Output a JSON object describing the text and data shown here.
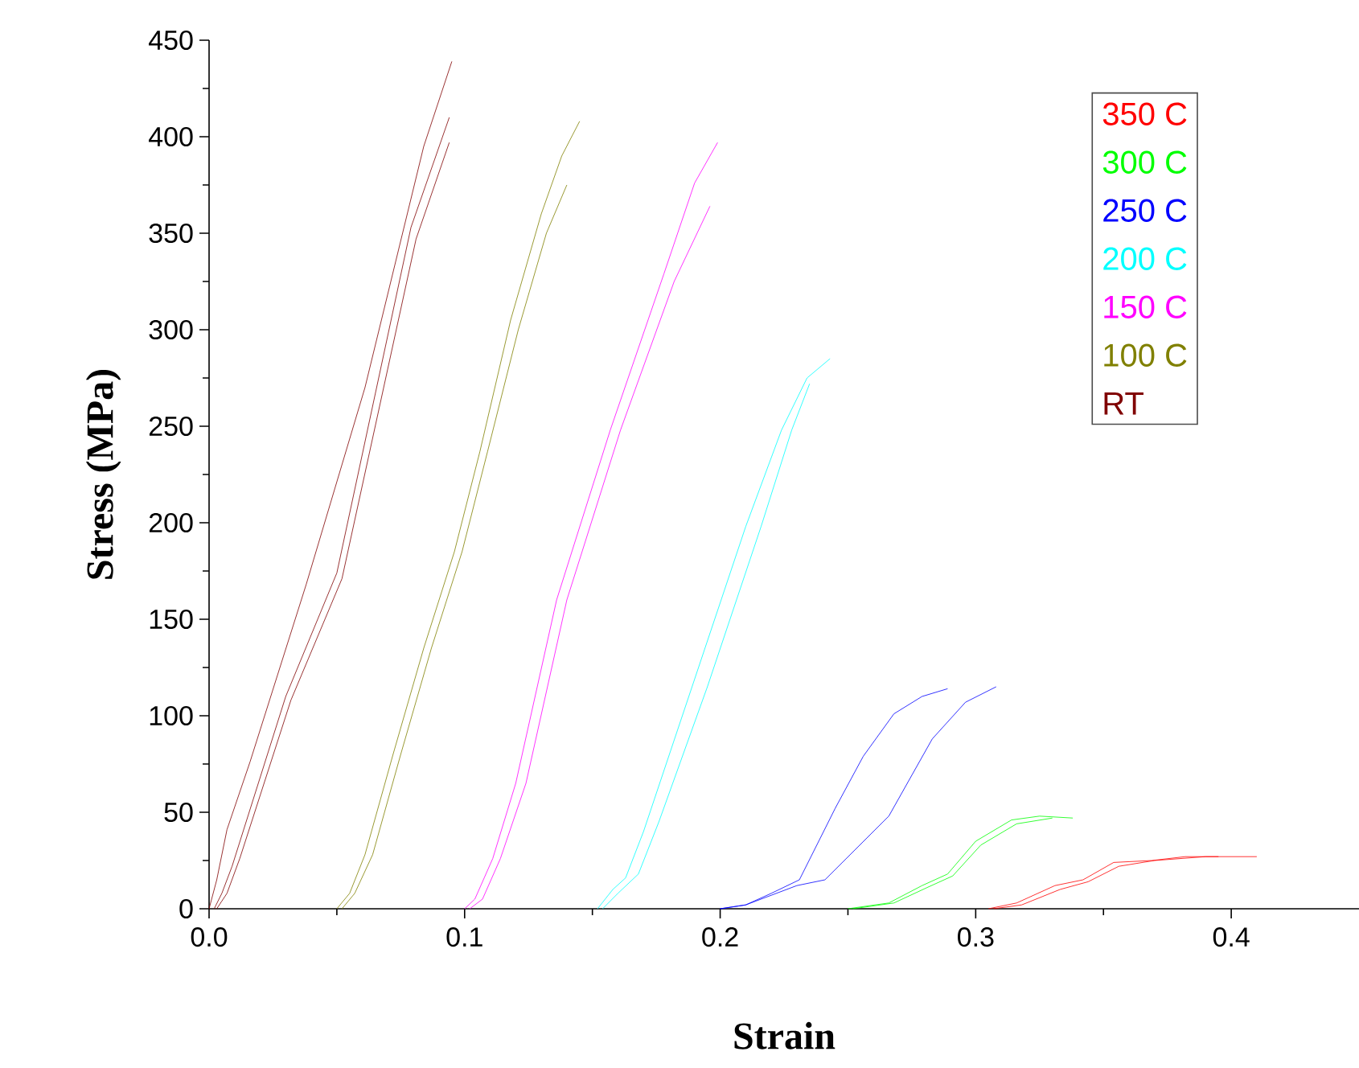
{
  "chart_data": {
    "type": "line",
    "xlabel": "Strain",
    "ylabel": "Stress (MPa)",
    "xlim": [
      0,
      0.45
    ],
    "ylim": [
      0,
      450
    ],
    "xticks": [
      {
        "value": 0,
        "label": "0.0"
      },
      0.1,
      0.2,
      0.3,
      0.4
    ],
    "yticks": [
      0,
      50,
      100,
      150,
      200,
      250,
      300,
      350,
      400,
      450
    ],
    "legend": "top right",
    "series": [
      {
        "name": "350 C",
        "color": "#ff0000",
        "x": [
          0.305,
          0.316,
          0.331,
          0.342,
          0.354,
          0.369,
          0.382,
          0.41
        ],
        "values": [
          0,
          3,
          12,
          15,
          24,
          25,
          27,
          27
        ]
      },
      {
        "color": "#ff0000",
        "x": [
          0.307,
          0.318,
          0.333,
          0.344,
          0.356,
          0.37,
          0.39,
          0.395
        ],
        "values": [
          0,
          2,
          10,
          14,
          22,
          25,
          27,
          27
        ]
      },
      {
        "name": "300 C",
        "color": "#00ff00",
        "x": [
          0.25,
          0.266,
          0.279,
          0.289,
          0.3,
          0.314,
          0.325,
          0.338
        ],
        "values": [
          0,
          3,
          12,
          18,
          35,
          46,
          48,
          47
        ]
      },
      {
        "color": "#00ff00",
        "x": [
          0.252,
          0.268,
          0.281,
          0.291,
          0.302,
          0.316,
          0.33
        ],
        "values": [
          0,
          3,
          11,
          17,
          33,
          44,
          47
        ]
      },
      {
        "name": "250 C",
        "color": "#0000ff",
        "x": [
          0.2,
          0.21,
          0.22,
          0.231,
          0.245,
          0.256,
          0.268,
          0.279,
          0.289
        ],
        "values": [
          0,
          2,
          8,
          15,
          52,
          79,
          101,
          110,
          114
        ]
      },
      {
        "color": "#0000ff",
        "x": [
          0.2,
          0.21,
          0.22,
          0.23,
          0.241,
          0.266,
          0.283,
          0.296,
          0.308
        ],
        "values": [
          0,
          2,
          7,
          12,
          15,
          48,
          88,
          107,
          115
        ]
      },
      {
        "name": "200 C",
        "color": "#00ffff",
        "x": [
          0.152,
          0.158,
          0.163,
          0.17,
          0.189,
          0.21,
          0.224,
          0.234,
          0.243
        ],
        "values": [
          0,
          10,
          16,
          40,
          115,
          198,
          248,
          275,
          285
        ]
      },
      {
        "color": "#00ffff",
        "x": [
          0.154,
          0.16,
          0.168,
          0.176,
          0.195,
          0.216,
          0.228,
          0.235
        ],
        "values": [
          0,
          8,
          18,
          45,
          115,
          198,
          248,
          272
        ]
      },
      {
        "name": "150 C",
        "color": "#ff00ff",
        "x": [
          0.1,
          0.104,
          0.111,
          0.12,
          0.136,
          0.157,
          0.178,
          0.19,
          0.199
        ],
        "values": [
          0,
          5,
          26,
          65,
          160,
          248,
          329,
          376,
          397
        ]
      },
      {
        "color": "#ff00ff",
        "x": [
          0.102,
          0.107,
          0.114,
          0.124,
          0.14,
          0.161,
          0.182,
          0.196
        ],
        "values": [
          0,
          5,
          26,
          65,
          160,
          248,
          325,
          364
        ]
      },
      {
        "name": "100 C",
        "color": "#808000",
        "x": [
          0.05,
          0.055,
          0.061,
          0.072,
          0.084,
          0.096,
          0.106,
          0.118,
          0.13,
          0.138,
          0.145
        ],
        "values": [
          0,
          8,
          28,
          80,
          135,
          185,
          237,
          305,
          360,
          390,
          408
        ]
      },
      {
        "color": "#808000",
        "x": [
          0.052,
          0.057,
          0.064,
          0.075,
          0.087,
          0.099,
          0.109,
          0.121,
          0.132,
          0.14
        ],
        "values": [
          0,
          8,
          28,
          80,
          135,
          185,
          237,
          300,
          350,
          375
        ]
      },
      {
        "name": "RT",
        "color": "#800000",
        "x": [
          0,
          0.003,
          0.007,
          0.016,
          0.038,
          0.061,
          0.084,
          0.095
        ],
        "values": [
          0,
          15,
          41,
          76,
          168,
          270,
          395,
          439
        ]
      },
      {
        "color": "#800000",
        "x": [
          0.002,
          0.005,
          0.009,
          0.03,
          0.05,
          0.079,
          0.094
        ],
        "values": [
          0,
          8,
          22,
          110,
          174,
          353,
          410
        ]
      },
      {
        "color": "#800000",
        "x": [
          0.003,
          0.007,
          0.012,
          0.032,
          0.052,
          0.081,
          0.094
        ],
        "values": [
          0,
          8,
          26,
          108,
          171,
          347,
          397
        ]
      }
    ]
  }
}
